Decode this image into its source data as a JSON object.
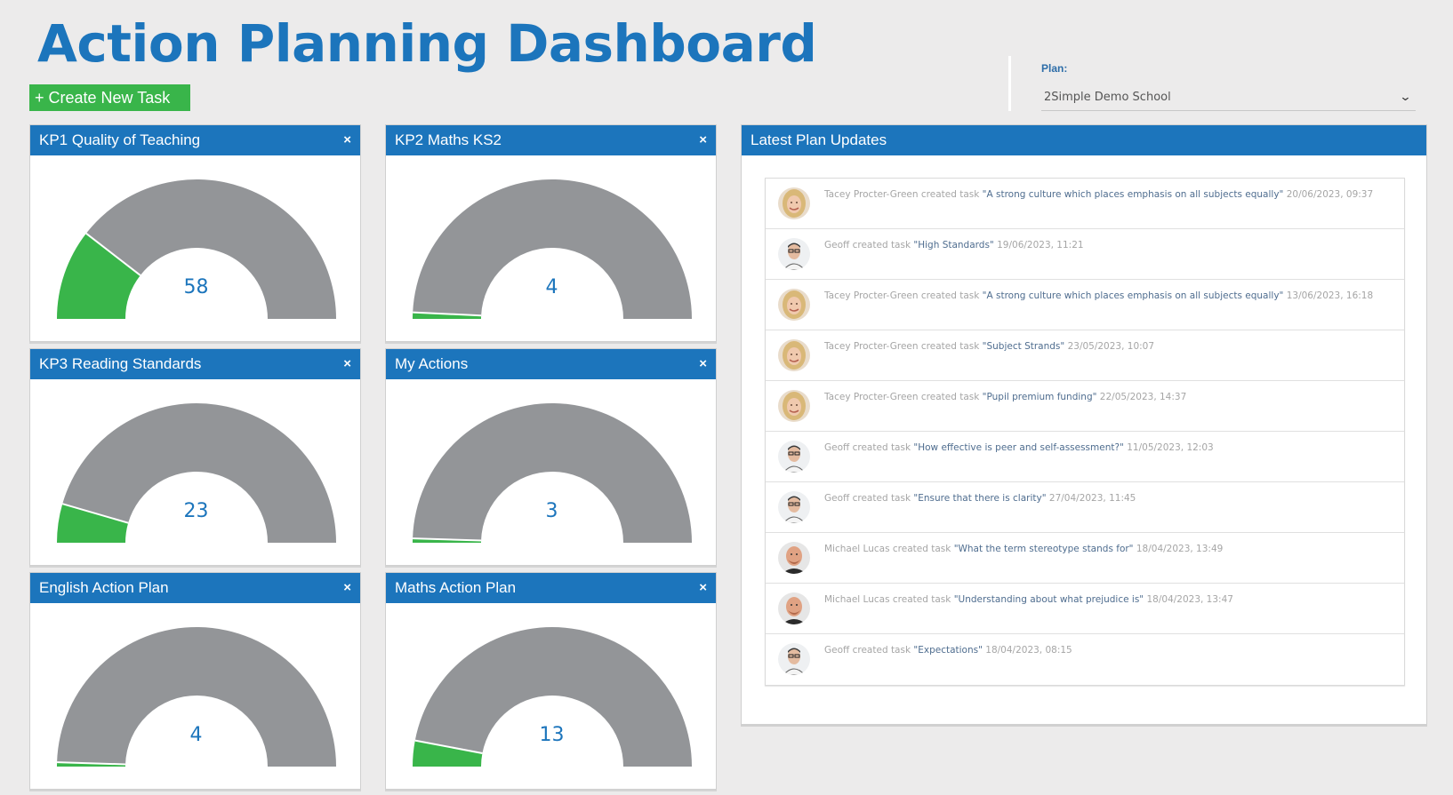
{
  "header": {
    "title": "Action Planning Dashboard",
    "create_button": "+ Create New Task"
  },
  "plan": {
    "label": "Plan:",
    "selected": "2Simple Demo School",
    "chevron_icon": "chevron-down-icon"
  },
  "colors": {
    "brand_blue": "#1c75bc",
    "progress_green": "#39b54a",
    "gauge_grey": "#939598",
    "background": "#ecebeb"
  },
  "cards": [
    {
      "title": "KP1 Quality of Teaching",
      "value": "58",
      "percent": 21
    },
    {
      "title": "KP2 Maths KS2",
      "value": "4",
      "percent": 1.5
    },
    {
      "title": "KP3 Reading Standards",
      "value": "23",
      "percent": 9
    },
    {
      "title": "My Actions",
      "value": "3",
      "percent": 1
    },
    {
      "title": "English Action Plan",
      "value": "4",
      "percent": 1
    },
    {
      "title": "Maths Action Plan",
      "value": "13",
      "percent": 6
    }
  ],
  "close_icon": "×",
  "updates": {
    "title": "Latest Plan Updates",
    "items": [
      {
        "user": "Tacey Procter-Green",
        "avatar": "female",
        "action": "created task",
        "task": "\"A strong culture which places emphasis on all subjects equally\"",
        "time": "20/06/2023, 09:37"
      },
      {
        "user": "Geoff",
        "avatar": "geoff",
        "action": "created task",
        "task": "\"High Standards\"",
        "time": "19/06/2023, 11:21"
      },
      {
        "user": "Tacey Procter-Green",
        "avatar": "female",
        "action": "created task",
        "task": "\"A strong culture which places emphasis on all subjects equally\"",
        "time": "13/06/2023, 16:18"
      },
      {
        "user": "Tacey Procter-Green",
        "avatar": "female",
        "action": "created task",
        "task": "\"Subject Strands\"",
        "time": "23/05/2023, 10:07"
      },
      {
        "user": "Tacey Procter-Green",
        "avatar": "female",
        "action": "created task",
        "task": "\"Pupil premium funding\"",
        "time": "22/05/2023, 14:37"
      },
      {
        "user": "Geoff",
        "avatar": "geoff",
        "action": "created task",
        "task": "\"How effective is peer and self-assessment?\"",
        "time": "11/05/2023, 12:03"
      },
      {
        "user": "Geoff",
        "avatar": "geoff",
        "action": "created task",
        "task": "\"Ensure that there is clarity\"",
        "time": "27/04/2023, 11:45"
      },
      {
        "user": "Michael Lucas",
        "avatar": "michael",
        "action": "created task",
        "task": "\"What the term stereotype stands for\"",
        "time": "18/04/2023, 13:49"
      },
      {
        "user": "Michael Lucas",
        "avatar": "michael",
        "action": "created task",
        "task": "\"Understanding about what prejudice is\"",
        "time": "18/04/2023, 13:47"
      },
      {
        "user": "Geoff",
        "avatar": "geoff",
        "action": "created task",
        "task": "\"Expectations\"",
        "time": "18/04/2023, 08:15"
      }
    ]
  }
}
